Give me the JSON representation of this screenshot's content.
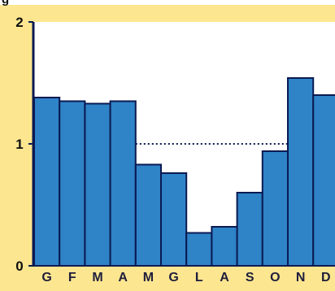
{
  "header": {
    "title_fragment": "g"
  },
  "chart_data": {
    "type": "bar",
    "title": "",
    "xlabel": "",
    "ylabel": "",
    "categories": [
      "G",
      "F",
      "M",
      "A",
      "M",
      "G",
      "L",
      "A",
      "S",
      "O",
      "N",
      "D"
    ],
    "values": [
      1.38,
      1.35,
      1.33,
      1.35,
      0.83,
      0.76,
      0.27,
      0.32,
      0.6,
      0.94,
      1.54,
      1.4
    ],
    "ylim": [
      0,
      2
    ],
    "yticks": [
      "0",
      "1",
      "2"
    ],
    "reference_line": {
      "value": 1,
      "style": "dotted",
      "from_category": 4,
      "to_category": 10
    },
    "grid": false,
    "legend": "none",
    "colors": {
      "page_background": "#ffffff",
      "frame": "#fde690",
      "plot_background": "#ffffff",
      "bar_fill": "#2f83c7",
      "bar_stroke": "#0a1a52",
      "axis": "#0a1a52",
      "reference_line": "#0a1a52"
    }
  }
}
